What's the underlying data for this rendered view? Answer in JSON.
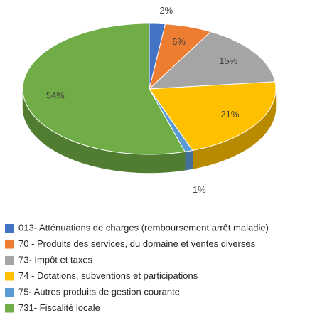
{
  "chart_data": {
    "type": "pie",
    "categories": [
      "013- Atténuations de charges (remboursement arrêt maladie)",
      "70 - Produits des services, du domaine et ventes diverses",
      "73- Impôt et taxes",
      "74 - Dotations, subventions et participations",
      "75- Autres produits de gestion courante",
      "731- Fiscalité locale"
    ],
    "values": [
      2,
      6,
      15,
      21,
      1,
      54
    ],
    "value_labels": [
      "2%",
      "6%",
      "15%",
      "21%",
      "1%",
      "54%"
    ],
    "colors": [
      "#4472c4",
      "#ed7d31",
      "#a5a5a5",
      "#ffc000",
      "#5b9bd5",
      "#70ad47"
    ]
  }
}
